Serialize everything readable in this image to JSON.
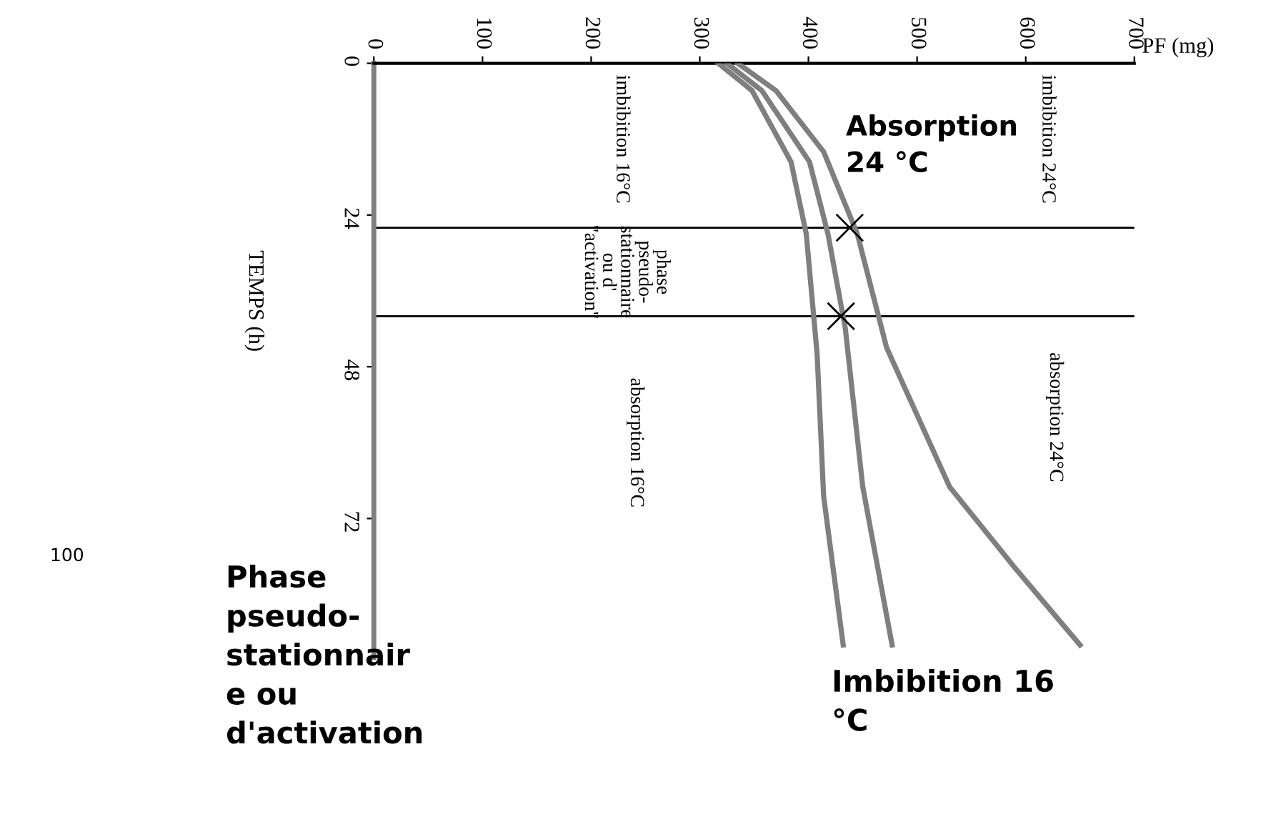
{
  "chart_data": {
    "type": "line",
    "xlabel": "PF (mg)",
    "ylabel": "TEMPS (h)",
    "xlim": [
      0,
      700
    ],
    "xticks": [
      0,
      100,
      200,
      300,
      400,
      500,
      600,
      700
    ],
    "ylim": [
      94,
      0
    ],
    "yticks": [
      0,
      24,
      48,
      72
    ],
    "grid": false,
    "legend": false,
    "line_style": "solid",
    "series": [
      {
        "color": "#7f7f7f",
        "marker": "none",
        "x": [
          317,
          348,
          384,
          398,
          408,
          414,
          432
        ],
        "values": [
          0,
          4.3,
          15.6,
          27,
          46,
          68.5,
          92
        ]
      },
      {
        "color": "#7f7f7f",
        "marker": "none",
        "x": [
          325,
          357,
          401,
          418,
          434,
          450,
          477
        ],
        "values": [
          0,
          4.3,
          15.6,
          27,
          42,
          67,
          92
        ]
      },
      {
        "color": "#7f7f7f",
        "marker": "none",
        "x": [
          335,
          370,
          414,
          445,
          472,
          530,
          591,
          650
        ],
        "values": [
          0,
          4.3,
          14,
          27,
          45,
          67,
          80,
          92
        ]
      },
      {
        "type": "scatter",
        "color": "#000000",
        "marker": "cross",
        "x": [
          438,
          430
        ],
        "values": [
          26,
          40
        ]
      }
    ],
    "ref_lines": [
      {
        "axis": "y",
        "value": 26,
        "color": "#000000",
        "line_style": "solid"
      },
      {
        "axis": "y",
        "value": 40,
        "color": "#000000",
        "line_style": "solid"
      }
    ],
    "annotations": [
      "imbibition 16°C",
      "imbibition 24°C",
      "phase\npseudo-\nstationnaire\nou d'\n\"activation\"",
      "absorption 24°C",
      "absorption 16°C",
      "Absorption\n24 °C",
      "Phase\npseudo-\nstationnair\ne ou\nd'activation",
      "Imbibition 16\n°C",
      "100"
    ]
  }
}
